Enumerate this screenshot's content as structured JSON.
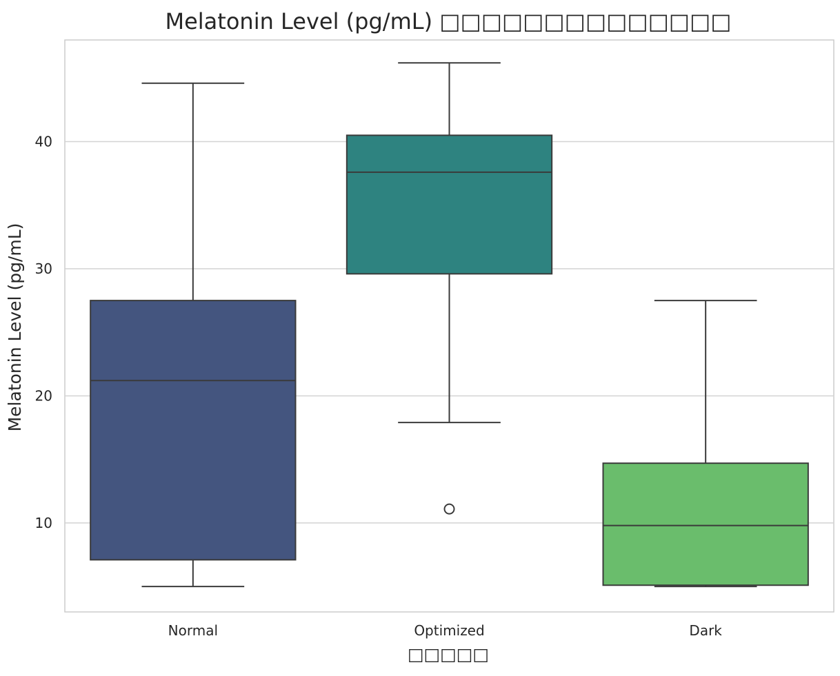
{
  "chart_data": {
    "type": "box",
    "title": "Melatonin Level (pg/mL) □□□□□□□□□□□□□□",
    "xlabel": "□□□□□",
    "ylabel": "Melatonin Level (pg/mL)",
    "ylim": [
      3,
      48
    ],
    "yticks": [
      10,
      20,
      30,
      40
    ],
    "grid": "horizontal",
    "categories": [
      "Normal",
      "Optimized",
      "Dark"
    ],
    "series": [
      {
        "category": "Normal",
        "whisker_low": 5.0,
        "q1": 7.1,
        "median": 21.2,
        "q3": 27.5,
        "whisker_high": 44.6,
        "outliers": [],
        "color": "#44557f"
      },
      {
        "category": "Optimized",
        "whisker_low": 17.9,
        "q1": 29.6,
        "median": 37.6,
        "q3": 40.5,
        "whisker_high": 46.2,
        "outliers": [
          11.1
        ],
        "color": "#2e8380"
      },
      {
        "category": "Dark",
        "whisker_low": 5.0,
        "q1": 5.1,
        "median": 9.8,
        "q3": 14.7,
        "whisker_high": 27.5,
        "outliers": [],
        "color": "#6abd6c"
      }
    ]
  }
}
